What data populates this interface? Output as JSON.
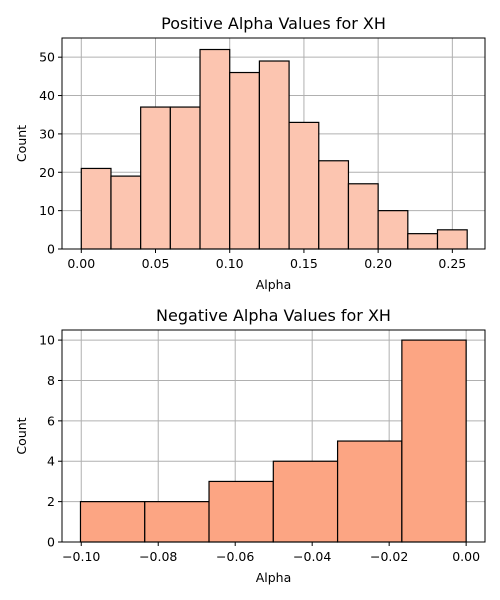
{
  "chart_data": [
    {
      "type": "bar",
      "title": "Positive Alpha Values for XH",
      "xlabel": "Alpha",
      "ylabel": "Count",
      "color": "#fcc5b0",
      "grid": true,
      "xlim": [
        -0.013,
        0.272
      ],
      "ylim": [
        0,
        55
      ],
      "xticks": [
        0.0,
        0.05,
        0.1,
        0.15,
        0.2,
        0.25
      ],
      "xtick_labels": [
        "0.00",
        "0.05",
        "0.10",
        "0.15",
        "0.20",
        "0.25"
      ],
      "yticks": [
        0,
        10,
        20,
        30,
        40,
        50
      ],
      "ytick_labels": [
        "0",
        "10",
        "20",
        "30",
        "40",
        "50"
      ],
      "bins": [
        {
          "x0": 0.0,
          "x1": 0.02,
          "count": 21
        },
        {
          "x0": 0.02,
          "x1": 0.04,
          "count": 19
        },
        {
          "x0": 0.04,
          "x1": 0.06,
          "count": 37
        },
        {
          "x0": 0.06,
          "x1": 0.08,
          "count": 37
        },
        {
          "x0": 0.08,
          "x1": 0.1,
          "count": 52
        },
        {
          "x0": 0.1,
          "x1": 0.12,
          "count": 46
        },
        {
          "x0": 0.12,
          "x1": 0.14,
          "count": 49
        },
        {
          "x0": 0.14,
          "x1": 0.16,
          "count": 33
        },
        {
          "x0": 0.16,
          "x1": 0.18,
          "count": 23
        },
        {
          "x0": 0.18,
          "x1": 0.2,
          "count": 17
        },
        {
          "x0": 0.2,
          "x1": 0.22,
          "count": 10
        },
        {
          "x0": 0.22,
          "x1": 0.24,
          "count": 4
        },
        {
          "x0": 0.24,
          "x1": 0.26,
          "count": 5
        }
      ]
    },
    {
      "type": "bar",
      "title": "Negative Alpha Values for XH",
      "xlabel": "Alpha",
      "ylabel": "Count",
      "color": "#fca583",
      "grid": true,
      "xlim": [
        -0.105,
        0.0049
      ],
      "ylim": [
        0,
        10.5
      ],
      "xticks": [
        -0.1,
        -0.08,
        -0.06,
        -0.04,
        -0.02,
        0.0
      ],
      "xtick_labels": [
        "−0.10",
        "−0.08",
        "−0.06",
        "−0.04",
        "−0.02",
        "0.00"
      ],
      "yticks": [
        0,
        2,
        4,
        6,
        8,
        10
      ],
      "ytick_labels": [
        "0",
        "2",
        "4",
        "6",
        "8",
        "10"
      ],
      "bins": [
        {
          "x0": -0.1002,
          "x1": -0.0835,
          "count": 2
        },
        {
          "x0": -0.0835,
          "x1": -0.0668,
          "count": 2
        },
        {
          "x0": -0.0668,
          "x1": -0.0501,
          "count": 3
        },
        {
          "x0": -0.0501,
          "x1": -0.0334,
          "count": 4
        },
        {
          "x0": -0.0334,
          "x1": -0.0167,
          "count": 5
        },
        {
          "x0": -0.0167,
          "x1": 0.0,
          "count": 10
        }
      ]
    }
  ]
}
